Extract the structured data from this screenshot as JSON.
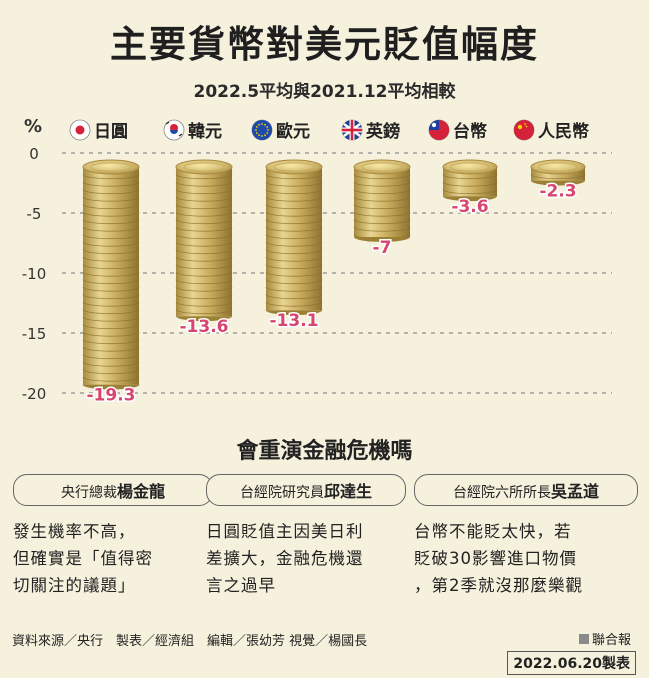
{
  "title": "主要貨幣對美元貶值幅度",
  "subtitle": "2022.5平均與2021.12平均相較",
  "chart_data": {
    "type": "bar",
    "ylabel": "%",
    "ylim": [
      -20,
      0
    ],
    "yticks": [
      0,
      -5,
      -10,
      -15,
      -20
    ],
    "categories": [
      "日圓",
      "韓元",
      "歐元",
      "英鎊",
      "台幣",
      "人民幣"
    ],
    "flag_icons": [
      "japan-flag-icon",
      "korea-flag-icon",
      "eu-flag-icon",
      "uk-flag-icon",
      "taiwan-flag-icon",
      "china-flag-icon"
    ],
    "values": [
      -19.3,
      -13.6,
      -13.1,
      -7,
      -3.6,
      -2.3
    ],
    "value_labels": [
      "-19.3",
      "-13.6",
      "-13.1",
      "-7",
      "-3.6",
      "-2.3"
    ],
    "grid": true,
    "bar_style": "stacked-coins",
    "label_color": "#d6466e"
  },
  "question": "會重演金融危機嗎",
  "quotes": [
    {
      "role": "央行總裁",
      "name": "楊金龍",
      "lines": [
        "發生機率不高，",
        "但確實是「值得密",
        "切關注的議題」"
      ]
    },
    {
      "role": "台經院研究員",
      "name": "邱達生",
      "lines": [
        "日圓貶值主因美日利",
        "差擴大，金融危機還",
        "言之過早"
      ]
    },
    {
      "role": "台經院六所所長",
      "name": "吳孟道",
      "lines": [
        "台幣不能貶太快，若",
        "貶破30影響進口物價",
        "，第2季就沒那麼樂觀"
      ]
    }
  ],
  "footer": "資料來源／央行　製表／經濟組　編輯／張幼芳 視覺／楊國長",
  "brand": "聯合報",
  "date": "2022.06.20製表"
}
